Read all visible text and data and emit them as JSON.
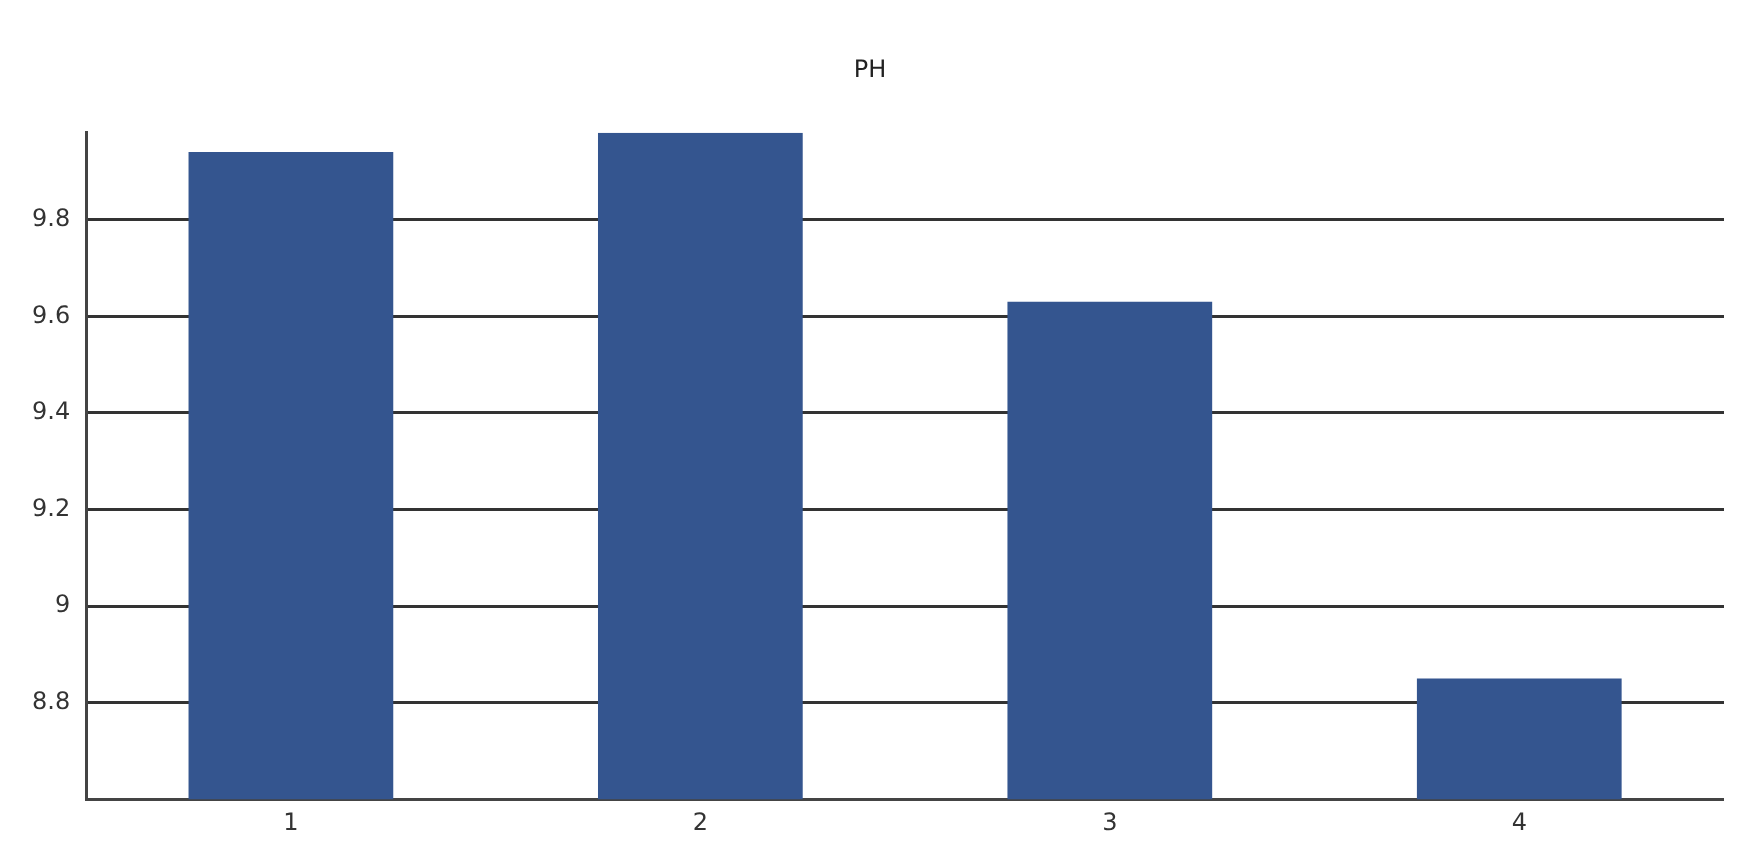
{
  "chart_data": {
    "type": "bar",
    "title": "PH",
    "categories": [
      "1",
      "2",
      "3",
      "4"
    ],
    "values": [
      9.94,
      9.98,
      9.63,
      8.85
    ],
    "color": "#34558f",
    "ylim": [
      8.6,
      9.98
    ],
    "yticks": [
      8.8,
      9,
      9.2,
      9.4,
      9.6,
      9.8
    ],
    "grid": "y",
    "legend": false
  }
}
